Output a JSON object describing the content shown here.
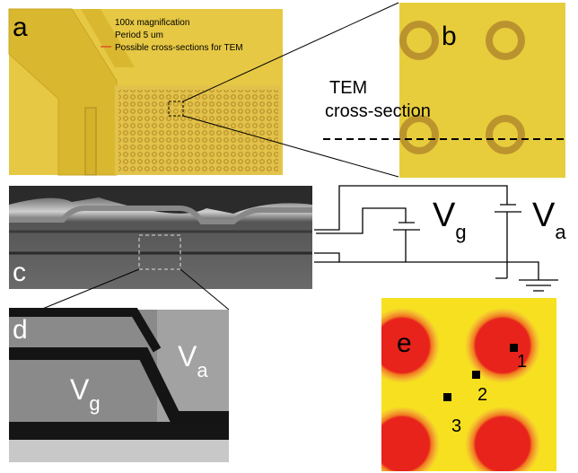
{
  "panels": {
    "a": {
      "label": "a",
      "notes": [
        "100x magnification",
        "Period 5 um",
        "Possible cross-sections for TEM"
      ]
    },
    "b": {
      "label": "b",
      "annotation": [
        "TEM",
        "cross-section"
      ]
    },
    "c": {
      "label": "c",
      "circuit": {
        "gate": {
          "symbol": "V",
          "subscript": "g"
        },
        "anode": {
          "symbol": "V",
          "subscript": "a"
        }
      }
    },
    "d": {
      "label": "d",
      "regions": [
        {
          "symbol": "V",
          "subscript": "g"
        },
        {
          "symbol": "V",
          "subscript": "a"
        }
      ]
    },
    "e": {
      "label": "e",
      "points": [
        "1",
        "2",
        "3"
      ]
    }
  }
}
